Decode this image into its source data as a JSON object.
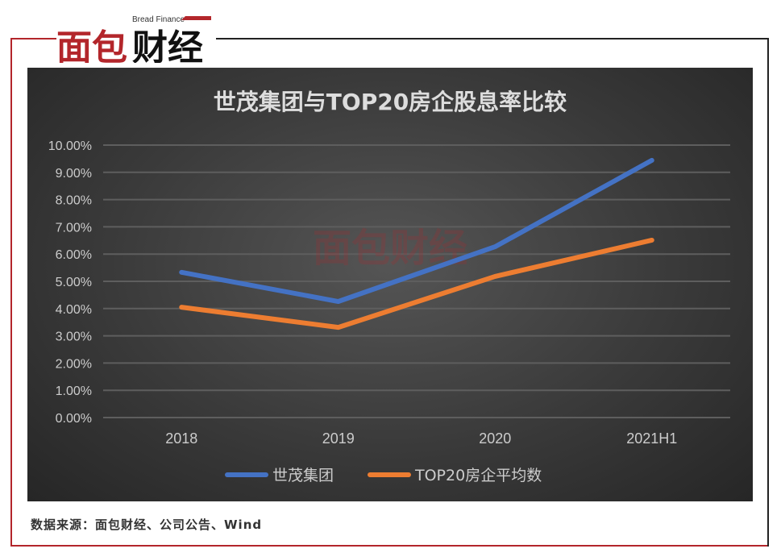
{
  "logo": {
    "text": "面包财经",
    "subtext": "Bread Finance"
  },
  "source": "数据来源：面包财经、公司公告、Wind",
  "colors": {
    "frame_red": "#b3262b",
    "series1": "#4472c4",
    "series2": "#ed7d31"
  },
  "chart_data": {
    "type": "line",
    "title": "世茂集团与TOP20房企股息率比较",
    "categories": [
      "2018",
      "2019",
      "2020",
      "2021H1"
    ],
    "y_ticks": [
      "0.00%",
      "1.00%",
      "2.00%",
      "3.00%",
      "4.00%",
      "5.00%",
      "6.00%",
      "7.00%",
      "8.00%",
      "9.00%",
      "10.00%"
    ],
    "ylim": [
      0,
      10
    ],
    "grid": true,
    "legend": "bottom",
    "series": [
      {
        "name": "世茂集团",
        "values": [
          5.33,
          4.26,
          6.27,
          9.44
        ],
        "color": "#4472c4"
      },
      {
        "name": "TOP20房企平均数",
        "values": [
          4.05,
          3.31,
          5.18,
          6.51
        ],
        "color": "#ed7d31"
      }
    ]
  }
}
